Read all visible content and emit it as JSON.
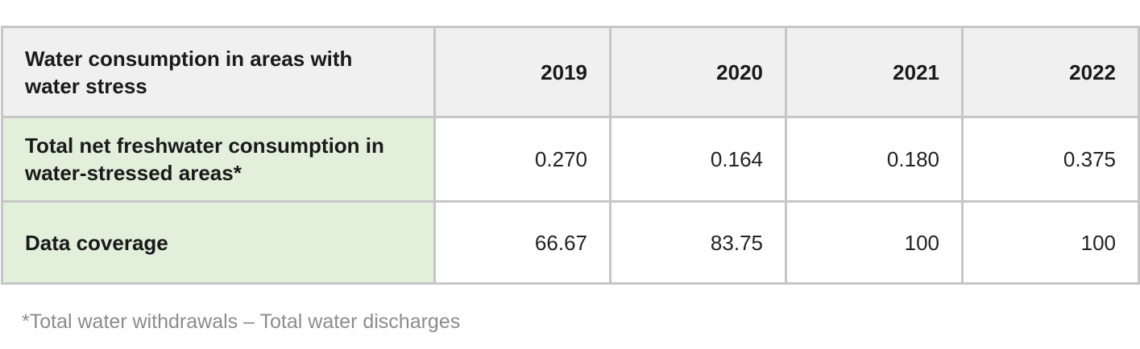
{
  "table": {
    "header": {
      "label": "Water consumption in areas with water stress",
      "years": [
        "2019",
        "2020",
        "2021",
        "2022"
      ]
    },
    "rows": [
      {
        "label": "Total net freshwater consumption in water-stressed areas*",
        "values": [
          "0.270",
          "0.164",
          "0.180",
          "0.375"
        ]
      },
      {
        "label": "Data coverage",
        "values": [
          "66.67",
          "83.75",
          "100",
          "100"
        ]
      }
    ]
  },
  "footnote": "*Total water withdrawals – Total water discharges",
  "colors": {
    "header_bg": "#f0f0f0",
    "row_label_bg": "#e2efda",
    "border": "#c6c6c6",
    "footnote_text": "#8c8c8c"
  }
}
